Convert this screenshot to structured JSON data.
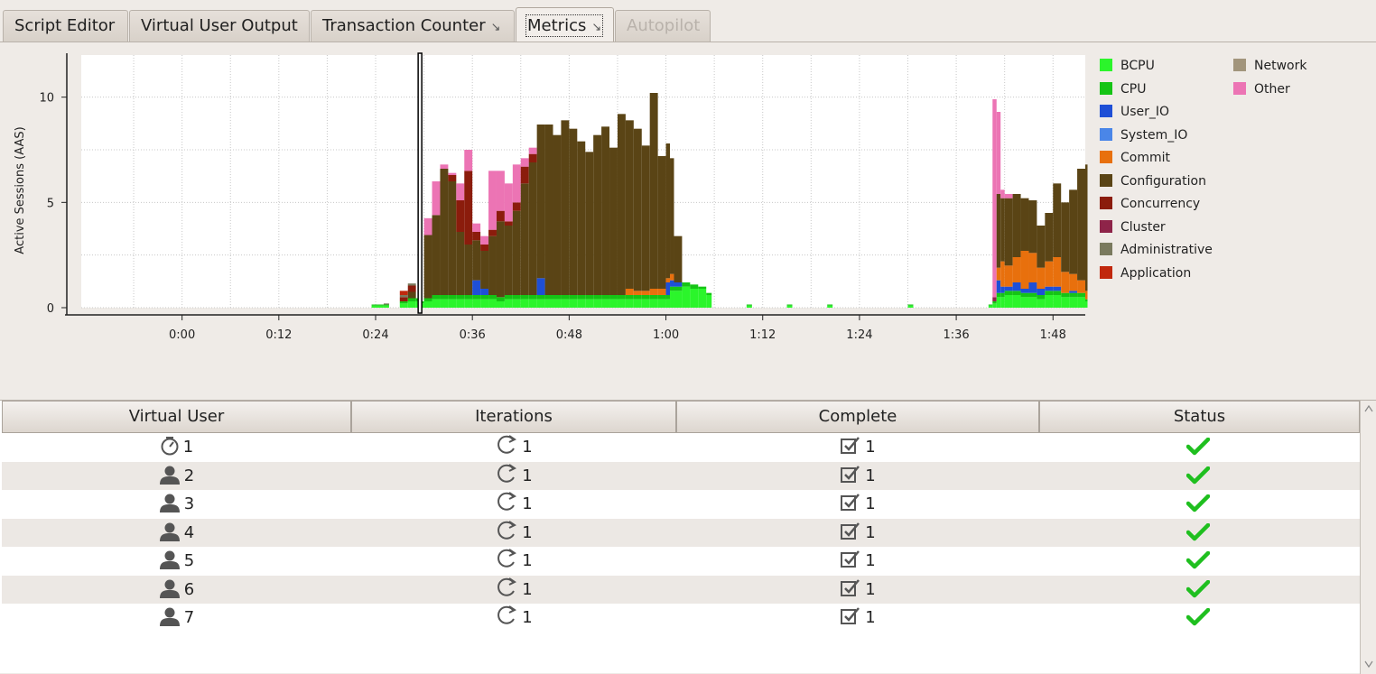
{
  "tabs": [
    {
      "label": "Script Editor",
      "state": "normal"
    },
    {
      "label": "Virtual User Output",
      "state": "normal"
    },
    {
      "label": "Transaction Counter",
      "state": "normal",
      "detach_icon": "detach-icon"
    },
    {
      "label": "Metrics",
      "state": "active",
      "detach_icon": "detach-icon"
    },
    {
      "label": "Autopilot",
      "state": "disabled"
    }
  ],
  "chart_data": {
    "type": "area",
    "stacked": true,
    "ylabel": "Active Sessions (AAS)",
    "xlabel": "",
    "ylim": [
      0,
      12
    ],
    "y_ticks": [
      "0",
      "5",
      "10"
    ],
    "x_ticks": [
      "0:00",
      "0:12",
      "0:24",
      "0:36",
      "0:48",
      "1:00",
      "1:12",
      "1:24",
      "1:36",
      "1:48"
    ],
    "xlim_minutes": [
      -12.5,
      112
    ],
    "grid": true,
    "cursor_minutes": 29.5,
    "legend_position": "right",
    "x_minutes": [
      23.5,
      25,
      27,
      28,
      29,
      29.5,
      30,
      31,
      32,
      33,
      34,
      35,
      36,
      37,
      38,
      39,
      40,
      41,
      42,
      43,
      44,
      45,
      46,
      47,
      48,
      49,
      50,
      51,
      52,
      53,
      54,
      55,
      56,
      57,
      58,
      59,
      60,
      60.5,
      61,
      62,
      63,
      64,
      65,
      70,
      75,
      80,
      90,
      100,
      100.5,
      101,
      101.5,
      102,
      103,
      104,
      105,
      106,
      107,
      108,
      109,
      110,
      111,
      112
    ],
    "series": [
      {
        "name": "BCPU",
        "color": "#2bf52b",
        "values": [
          0.1,
          0.1,
          0.2,
          0.3,
          0.3,
          0.2,
          0.3,
          0.4,
          0.4,
          0.4,
          0.4,
          0.4,
          0.4,
          0.4,
          0.4,
          0.3,
          0.4,
          0.4,
          0.4,
          0.4,
          0.4,
          0.4,
          0.4,
          0.4,
          0.4,
          0.4,
          0.4,
          0.4,
          0.4,
          0.4,
          0.4,
          0.4,
          0.4,
          0.4,
          0.4,
          0.4,
          0.4,
          0.8,
          0.8,
          1.0,
          0.9,
          0.9,
          0.6,
          0.1,
          0.1,
          0.1,
          0.1,
          0.1,
          0.2,
          0.5,
          0.5,
          0.6,
          0.6,
          0.5,
          0.5,
          0.4,
          0.6,
          0.6,
          0.5,
          0.5,
          0.5,
          0.3
        ]
      },
      {
        "name": "CPU",
        "color": "#15c415",
        "values": [
          0.05,
          0.05,
          0.1,
          0.15,
          0.15,
          0.1,
          0.15,
          0.2,
          0.2,
          0.2,
          0.2,
          0.2,
          0.2,
          0.2,
          0.2,
          0.2,
          0.2,
          0.2,
          0.2,
          0.2,
          0.2,
          0.2,
          0.2,
          0.2,
          0.2,
          0.2,
          0.2,
          0.2,
          0.2,
          0.2,
          0.2,
          0.2,
          0.2,
          0.2,
          0.2,
          0.2,
          0.2,
          0.2,
          0.2,
          0.2,
          0.2,
          0.1,
          0.1,
          0.05,
          0.05,
          0.05,
          0.05,
          0.05,
          0.1,
          0.2,
          0.2,
          0.2,
          0.2,
          0.2,
          0.2,
          0.2,
          0.2,
          0.2,
          0.2,
          0.2,
          0.2,
          0.1
        ]
      },
      {
        "name": "User_IO",
        "color": "#1e4fd6",
        "values": [
          0,
          0,
          0,
          0,
          0,
          0,
          0,
          0,
          0,
          0,
          0,
          0,
          0.7,
          0.3,
          0,
          0,
          0,
          0,
          0,
          0,
          0.8,
          0,
          0,
          0,
          0,
          0,
          0,
          0,
          0,
          0,
          0,
          0,
          0,
          0,
          0,
          0,
          0.6,
          0.3,
          0.2,
          0,
          0,
          0,
          0,
          0,
          0,
          0,
          0,
          0,
          0,
          0.6,
          0.3,
          0.2,
          0.4,
          0.2,
          0.5,
          0.3,
          0.2,
          0.2,
          0,
          0.1,
          0,
          0
        ]
      },
      {
        "name": "System_IO",
        "color": "#4a86e8",
        "values": [
          0,
          0,
          0,
          0,
          0,
          0,
          0,
          0,
          0,
          0,
          0,
          0,
          0,
          0,
          0,
          0,
          0,
          0,
          0,
          0,
          0,
          0,
          0,
          0,
          0,
          0,
          0,
          0,
          0,
          0,
          0,
          0,
          0,
          0,
          0,
          0,
          0,
          0,
          0,
          0,
          0,
          0,
          0,
          0,
          0,
          0,
          0,
          0,
          0,
          0,
          0,
          0,
          0,
          0,
          0,
          0,
          0,
          0,
          0,
          0,
          0,
          0
        ]
      },
      {
        "name": "Commit",
        "color": "#e8700d",
        "values": [
          0,
          0,
          0,
          0,
          0,
          0,
          0,
          0,
          0,
          0,
          0,
          0,
          0,
          0,
          0,
          0,
          0,
          0,
          0,
          0,
          0,
          0,
          0,
          0,
          0,
          0,
          0,
          0,
          0,
          0,
          0,
          0.3,
          0.2,
          0.2,
          0.3,
          0.3,
          0.2,
          0.3,
          0,
          0,
          0,
          0,
          0,
          0,
          0,
          0,
          0,
          0,
          0,
          0.6,
          1.2,
          1.0,
          1.2,
          1.8,
          1.4,
          1.0,
          1.2,
          1.4,
          1.0,
          0.8,
          0.6,
          0.4
        ]
      },
      {
        "name": "Configuration",
        "color": "#5a4415",
        "values": [
          0,
          0,
          0,
          0.3,
          0,
          0,
          3.0,
          3.8,
          6.0,
          5.4,
          3.0,
          2.4,
          1.9,
          1.8,
          2.8,
          3.6,
          3.3,
          4.0,
          5.3,
          6.3,
          7.3,
          8.1,
          7.6,
          8.3,
          7.9,
          7.3,
          6.8,
          7.6,
          8.0,
          7.0,
          8.6,
          8.0,
          7.7,
          6.9,
          9.3,
          6.3,
          6.4,
          5.5,
          2.2,
          0,
          0,
          0,
          0,
          0,
          0,
          0,
          0,
          0,
          0,
          3.5,
          3.0,
          3.2,
          3.0,
          2.5,
          2.5,
          2.0,
          2.3,
          3.5,
          3.3,
          4.0,
          5.3,
          6.0
        ]
      },
      {
        "name": "Concurrency",
        "color": "#8b1c0c",
        "values": [
          0,
          0,
          0.2,
          0.3,
          0,
          0,
          0,
          0,
          0,
          0.3,
          1.5,
          3.5,
          0.4,
          0.3,
          0.3,
          0.5,
          0.2,
          0.4,
          0.8,
          0.4,
          0,
          0,
          0,
          0,
          0,
          0,
          0,
          0,
          0,
          0,
          0,
          0,
          0,
          0,
          0,
          0,
          0,
          0,
          0,
          0,
          0,
          0,
          0,
          0,
          0,
          0,
          0,
          0,
          0,
          0,
          0,
          0,
          0,
          0,
          0,
          0,
          0,
          0,
          0,
          0,
          0,
          0
        ]
      },
      {
        "name": "Cluster",
        "color": "#8e2449",
        "values": [
          0,
          0,
          0,
          0,
          0,
          0,
          0,
          0,
          0,
          0,
          0,
          0,
          0,
          0,
          0,
          0,
          0,
          0,
          0,
          0,
          0,
          0,
          0,
          0,
          0,
          0,
          0,
          0,
          0,
          0,
          0,
          0,
          0,
          0,
          0,
          0,
          0,
          0,
          0,
          0,
          0,
          0,
          0,
          0,
          0,
          0,
          0,
          0,
          0.2,
          0,
          0,
          0,
          0,
          0,
          0,
          0,
          0,
          0,
          0,
          0,
          0,
          0
        ]
      },
      {
        "name": "Administrative",
        "color": "#7a7a5e",
        "values": [
          0,
          0.05,
          0.1,
          0.1,
          0,
          0,
          0,
          0,
          0,
          0,
          0,
          0,
          0,
          0,
          0,
          0,
          0,
          0,
          0,
          0,
          0,
          0,
          0,
          0,
          0,
          0,
          0,
          0,
          0,
          0,
          0,
          0,
          0,
          0,
          0,
          0,
          0,
          0,
          0,
          0,
          0,
          0,
          0,
          0,
          0,
          0,
          0,
          0,
          0,
          0,
          0,
          0,
          0,
          0,
          0,
          0,
          0,
          0,
          0,
          0,
          0,
          0
        ]
      },
      {
        "name": "Application",
        "color": "#c1280d",
        "values": [
          0,
          0,
          0.2,
          0,
          0,
          0,
          0,
          0,
          0,
          0,
          0,
          0,
          0,
          0,
          0,
          0,
          0,
          0,
          0,
          0,
          0,
          0,
          0,
          0,
          0,
          0,
          0,
          0,
          0,
          0,
          0,
          0,
          0,
          0,
          0,
          0,
          0,
          0,
          0,
          0,
          0,
          0,
          0,
          0,
          0,
          0,
          0,
          0,
          0,
          0,
          0,
          0,
          0,
          0,
          0,
          0,
          0,
          0,
          0,
          0,
          0,
          0
        ]
      },
      {
        "name": "Network",
        "color": "#a2957c",
        "values": [
          0,
          0,
          0,
          0,
          0,
          0,
          0,
          0,
          0,
          0,
          0,
          0,
          0,
          0,
          0,
          0,
          0,
          0,
          0,
          0,
          0,
          0,
          0,
          0,
          0,
          0,
          0,
          0,
          0,
          0,
          0,
          0,
          0,
          0,
          0,
          0,
          0,
          0,
          0,
          0,
          0,
          0,
          0,
          0,
          0,
          0,
          0,
          0,
          0,
          0,
          0,
          0,
          0,
          0,
          0,
          0,
          0,
          0,
          0,
          0,
          0,
          0
        ]
      },
      {
        "name": "Other",
        "color": "#ec74b4",
        "values": [
          0,
          0,
          0,
          0,
          0,
          0,
          0.8,
          1.6,
          0.2,
          0.1,
          0.8,
          1.0,
          0.4,
          0.4,
          2.8,
          1.9,
          1.8,
          1.8,
          0.4,
          0.3,
          0,
          0,
          0,
          0,
          0,
          0,
          0,
          0,
          0,
          0,
          0,
          0,
          0,
          0,
          0,
          0,
          0,
          0,
          0,
          0,
          0,
          0,
          0,
          0,
          0,
          0,
          0,
          0,
          9.4,
          3.9,
          0.4,
          0.2,
          0,
          0,
          0,
          0,
          0,
          0,
          0,
          0,
          0,
          0
        ]
      }
    ]
  },
  "table": {
    "columns": [
      "Virtual User",
      "Iterations",
      "Complete",
      "Status"
    ],
    "rows": [
      {
        "user": "1",
        "user_icon": "monitor-gauge-icon",
        "iterations": "1",
        "complete": "1",
        "status_icon": "check-icon"
      },
      {
        "user": "2",
        "user_icon": "user-icon",
        "iterations": "1",
        "complete": "1",
        "status_icon": "check-icon"
      },
      {
        "user": "3",
        "user_icon": "user-icon",
        "iterations": "1",
        "complete": "1",
        "status_icon": "check-icon"
      },
      {
        "user": "4",
        "user_icon": "user-icon",
        "iterations": "1",
        "complete": "1",
        "status_icon": "check-icon"
      },
      {
        "user": "5",
        "user_icon": "user-icon",
        "iterations": "1",
        "complete": "1",
        "status_icon": "check-icon"
      },
      {
        "user": "6",
        "user_icon": "user-icon",
        "iterations": "1",
        "complete": "1",
        "status_icon": "check-icon"
      },
      {
        "user": "7",
        "user_icon": "user-icon",
        "iterations": "1",
        "complete": "1",
        "status_icon": "check-icon"
      }
    ]
  },
  "colors": {
    "check": "#1fbf1f",
    "grid": "#c8c8c8",
    "plot_bg": "#ffffff"
  }
}
